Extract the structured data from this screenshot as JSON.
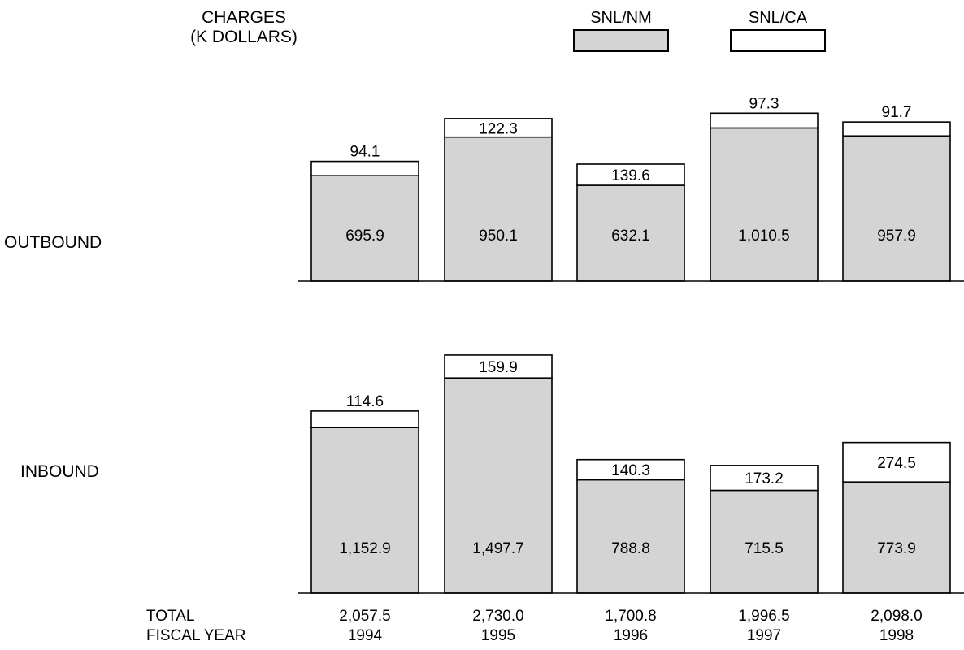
{
  "header": {
    "charges_line1": "CHARGES",
    "charges_line2": "(K DOLLARS)"
  },
  "legend": {
    "nm_label": "SNL/NM",
    "ca_label": "SNL/CA",
    "nm_color": "#d4d4d4",
    "ca_color": "#ffffff"
  },
  "rows": {
    "outbound": "OUTBOUND",
    "inbound": "INBOUND"
  },
  "footer": {
    "total_label": "TOTAL",
    "fy_label": "FISCAL YEAR",
    "totals": [
      "2,057.5",
      "2,730.0",
      "1,700.8",
      "1,996.5",
      "2,098.0"
    ],
    "years": [
      "1994",
      "1995",
      "1996",
      "1997",
      "1998"
    ]
  },
  "chart_data": [
    {
      "type": "bar",
      "stacked": true,
      "panel": "OUTBOUND",
      "categories": [
        "1994",
        "1995",
        "1996",
        "1997",
        "1998"
      ],
      "series": [
        {
          "name": "SNL/NM",
          "values": [
            695.9,
            950.1,
            632.1,
            1010.5,
            957.9
          ],
          "labels": [
            "695.9",
            "950.1",
            "632.1",
            "1,010.5",
            "957.9"
          ]
        },
        {
          "name": "SNL/CA",
          "values": [
            94.1,
            122.3,
            139.6,
            97.3,
            91.7
          ],
          "labels": [
            "94.1",
            "122.3",
            "139.6",
            "97.3",
            "91.7"
          ]
        }
      ],
      "legend": "top"
    },
    {
      "type": "bar",
      "stacked": true,
      "panel": "INBOUND",
      "categories": [
        "1994",
        "1995",
        "1996",
        "1997",
        "1998"
      ],
      "series": [
        {
          "name": "SNL/NM",
          "values": [
            1152.9,
            1497.7,
            788.8,
            715.5,
            773.9
          ],
          "labels": [
            "1,152.9",
            "1,497.7",
            "788.8",
            "715.5",
            "773.9"
          ]
        },
        {
          "name": "SNL/CA",
          "values": [
            114.6,
            159.9,
            140.3,
            173.2,
            274.5
          ],
          "labels": [
            "114.6",
            "159.9",
            "140.3",
            "173.2",
            "274.5"
          ]
        }
      ],
      "legend": "top"
    }
  ]
}
